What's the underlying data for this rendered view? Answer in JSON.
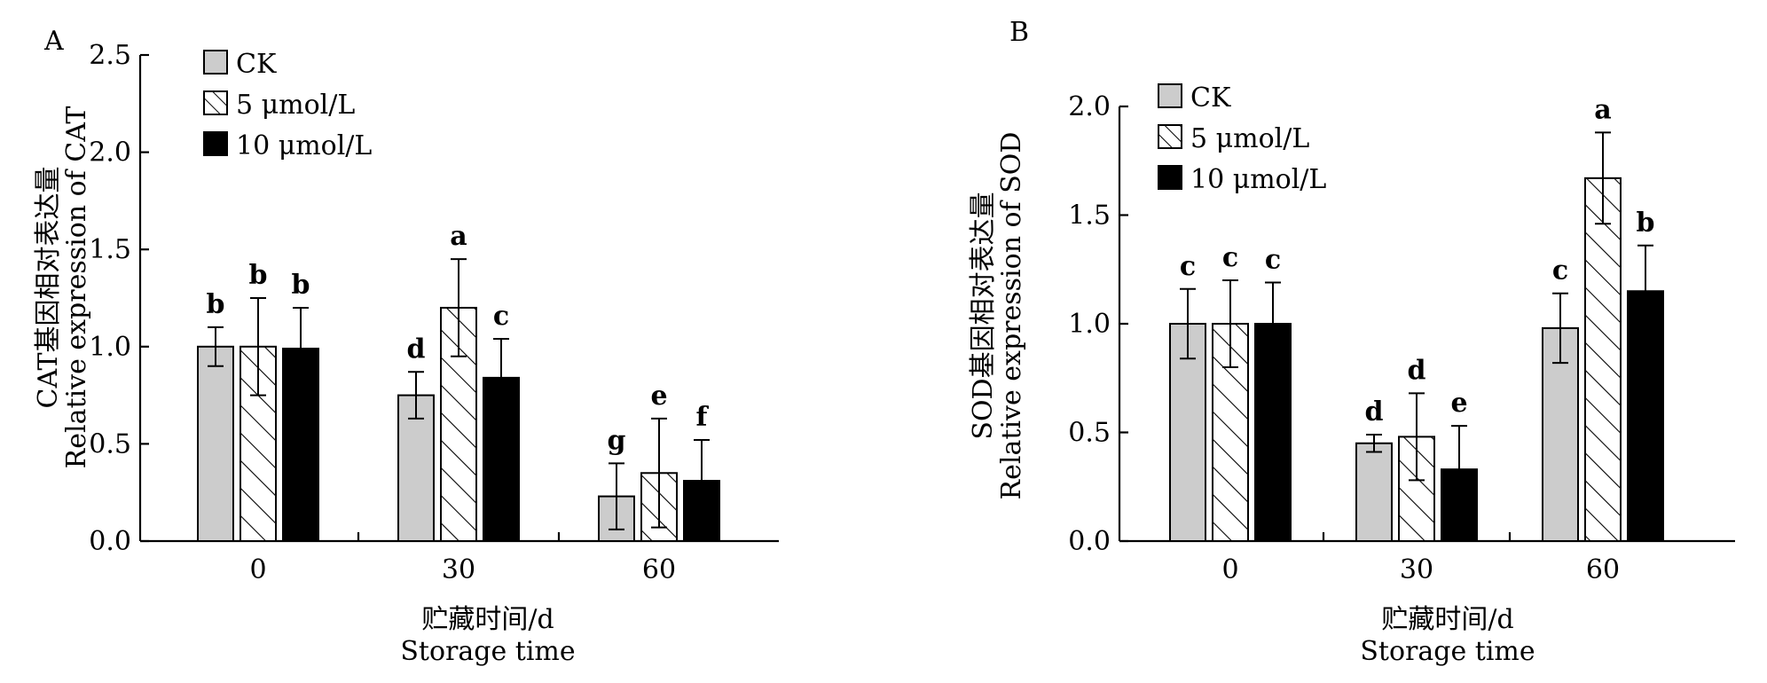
{
  "chart_data": [
    {
      "type": "bar",
      "panel_label": "A",
      "categories": [
        "0",
        "30",
        "60"
      ],
      "xlabel": "贮藏时间/d",
      "xlabel_en": "Storage time",
      "ylabel": "CAT基因相对表达量",
      "ylabel_en": "Relative expression of CAT",
      "ylim": [
        0,
        2.5
      ],
      "yticks": [
        "0.0",
        "0.5",
        "1.0",
        "1.5",
        "2.0",
        "2.5"
      ],
      "legend_position": "top-left",
      "grid": false,
      "series": [
        {
          "name": "CK",
          "values": [
            1.0,
            0.75,
            0.23
          ],
          "errors": [
            0.1,
            0.12,
            0.17
          ],
          "letters": [
            "b",
            "d",
            "g"
          ],
          "fill": "#cccccc",
          "pattern": "solid"
        },
        {
          "name": "5  μmol/L",
          "values": [
            1.0,
            1.2,
            0.35
          ],
          "errors": [
            0.25,
            0.25,
            0.28
          ],
          "letters": [
            "b",
            "a",
            "e"
          ],
          "fill": "#ffffff",
          "pattern": "hatch"
        },
        {
          "name": "10  μmol/L",
          "values": [
            0.99,
            0.84,
            0.31
          ],
          "errors": [
            0.21,
            0.2,
            0.21
          ],
          "letters": [
            "b",
            "c",
            "f"
          ],
          "fill": "#000000",
          "pattern": "solid"
        }
      ]
    },
    {
      "type": "bar",
      "panel_label": "B",
      "categories": [
        "0",
        "30",
        "60"
      ],
      "xlabel": "贮藏时间/d",
      "xlabel_en": "Storage time",
      "ylabel": "SOD基因相对表达量",
      "ylabel_en": "Relative expression of SOD",
      "ylim": [
        0,
        2.0
      ],
      "yticks": [
        "0.0",
        "0.5",
        "1.0",
        "1.5",
        "2.0"
      ],
      "legend_position": "top-left",
      "grid": false,
      "series": [
        {
          "name": "CK",
          "values": [
            1.0,
            0.45,
            0.98
          ],
          "errors": [
            0.16,
            0.04,
            0.16
          ],
          "letters": [
            "c",
            "d",
            "c"
          ],
          "fill": "#cccccc",
          "pattern": "solid"
        },
        {
          "name": "5  μmol/L",
          "values": [
            1.0,
            0.48,
            1.67
          ],
          "errors": [
            0.2,
            0.2,
            0.21
          ],
          "letters": [
            "c",
            "d",
            "a"
          ],
          "fill": "#ffffff",
          "pattern": "hatch"
        },
        {
          "name": "10  μmol/L",
          "values": [
            1.0,
            0.33,
            1.15
          ],
          "errors": [
            0.19,
            0.2,
            0.21
          ],
          "letters": [
            "c",
            "e",
            "b"
          ],
          "fill": "#000000",
          "pattern": "solid"
        }
      ]
    }
  ]
}
